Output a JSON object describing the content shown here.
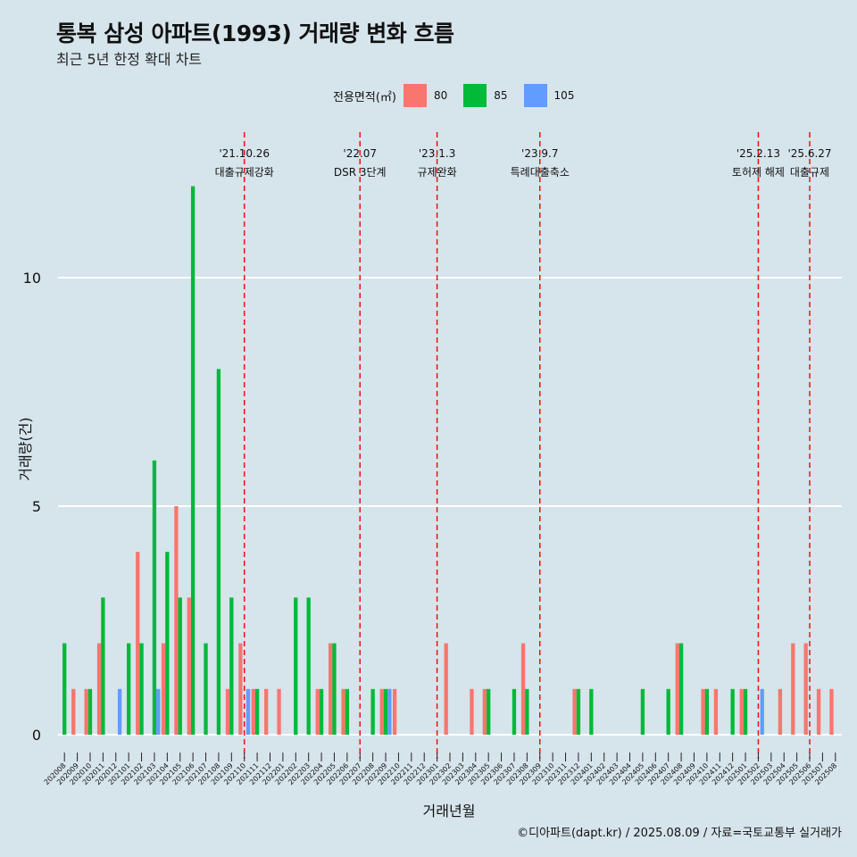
{
  "title": "통복 삼성 아파트(1993) 거래량 변화 흐름",
  "subtitle": "최근 5년 한정 확대 차트",
  "caption": "©디아파트(dapt.kr) / 2025.08.09 / 자료=국토교통부 실거래가",
  "legend": {
    "title": "전용면적(㎡)",
    "items": [
      {
        "label": "80",
        "color": "#f8766d"
      },
      {
        "label": "85",
        "color": "#00ba38"
      },
      {
        "label": "105",
        "color": "#619cff"
      }
    ]
  },
  "chart_data": {
    "type": "bar",
    "stacked": false,
    "xlabel": "거래년월",
    "ylabel": "거래량(건)",
    "ylim": [
      0,
      13
    ],
    "yticks": [
      0,
      5,
      10
    ],
    "grid": "horizontal",
    "legend_position": "top",
    "categories": [
      "202008",
      "202009",
      "202010",
      "202011",
      "202012",
      "202101",
      "202102",
      "202103",
      "202104",
      "202105",
      "202106",
      "202107",
      "202108",
      "202109",
      "202110",
      "202111",
      "202112",
      "202201",
      "202202",
      "202203",
      "202204",
      "202205",
      "202206",
      "202207",
      "202208",
      "202209",
      "202210",
      "202211",
      "202212",
      "202301",
      "202302",
      "202303",
      "202304",
      "202305",
      "202306",
      "202307",
      "202308",
      "202309",
      "202310",
      "202311",
      "202312",
      "202401",
      "202402",
      "202403",
      "202404",
      "202405",
      "202406",
      "202407",
      "202408",
      "202409",
      "202410",
      "202411",
      "202412",
      "202501",
      "202502",
      "202503",
      "202504",
      "202505",
      "202506",
      "202507",
      "202508"
    ],
    "series": [
      {
        "name": "80",
        "color": "#f8766d",
        "values": [
          0,
          1,
          1,
          2,
          0,
          0,
          4,
          0,
          2,
          5,
          3,
          0,
          0,
          1,
          2,
          1,
          1,
          1,
          0,
          0,
          1,
          2,
          1,
          0,
          0,
          1,
          1,
          0,
          0,
          0,
          2,
          0,
          1,
          1,
          0,
          0,
          2,
          0,
          0,
          0,
          1,
          0,
          0,
          0,
          0,
          0,
          0,
          0,
          2,
          0,
          1,
          1,
          0,
          1,
          0,
          0,
          1,
          2,
          2,
          1,
          1
        ]
      },
      {
        "name": "85",
        "color": "#00ba38",
        "values": [
          2,
          0,
          1,
          3,
          0,
          2,
          2,
          6,
          4,
          3,
          12,
          2,
          8,
          3,
          0,
          1,
          0,
          0,
          3,
          3,
          1,
          2,
          1,
          0,
          1,
          1,
          0,
          0,
          0,
          0,
          0,
          0,
          0,
          1,
          0,
          1,
          1,
          0,
          0,
          0,
          1,
          1,
          0,
          0,
          0,
          1,
          0,
          1,
          2,
          0,
          1,
          0,
          1,
          1,
          0,
          0,
          0,
          0,
          0,
          0,
          0
        ]
      },
      {
        "name": "105",
        "color": "#619cff",
        "values": [
          0,
          0,
          0,
          0,
          1,
          0,
          0,
          1,
          0,
          0,
          0,
          0,
          0,
          0,
          1,
          0,
          0,
          0,
          0,
          0,
          0,
          0,
          0,
          0,
          0,
          1,
          0,
          0,
          0,
          0,
          0,
          0,
          0,
          0,
          0,
          0,
          0,
          0,
          0,
          0,
          0,
          0,
          0,
          0,
          0,
          0,
          0,
          0,
          0,
          0,
          0,
          0,
          0,
          0,
          1,
          0,
          0,
          0,
          0,
          0,
          0
        ]
      }
    ],
    "events": [
      {
        "date": "'21.10.26",
        "label": "대출규제강화",
        "index": 14
      },
      {
        "date": "'22.07",
        "label": "DSR 3단계",
        "index": 23
      },
      {
        "date": "'23.1.3",
        "label": "규제완화",
        "index": 29
      },
      {
        "date": "'23.9.7",
        "label": "특례대출축소",
        "index": 37
      },
      {
        "date": "'25.2.13",
        "label": "토허제 해제",
        "index": 54
      },
      {
        "date": "'25.6.27",
        "label": "대출규제",
        "index": 58
      }
    ]
  }
}
